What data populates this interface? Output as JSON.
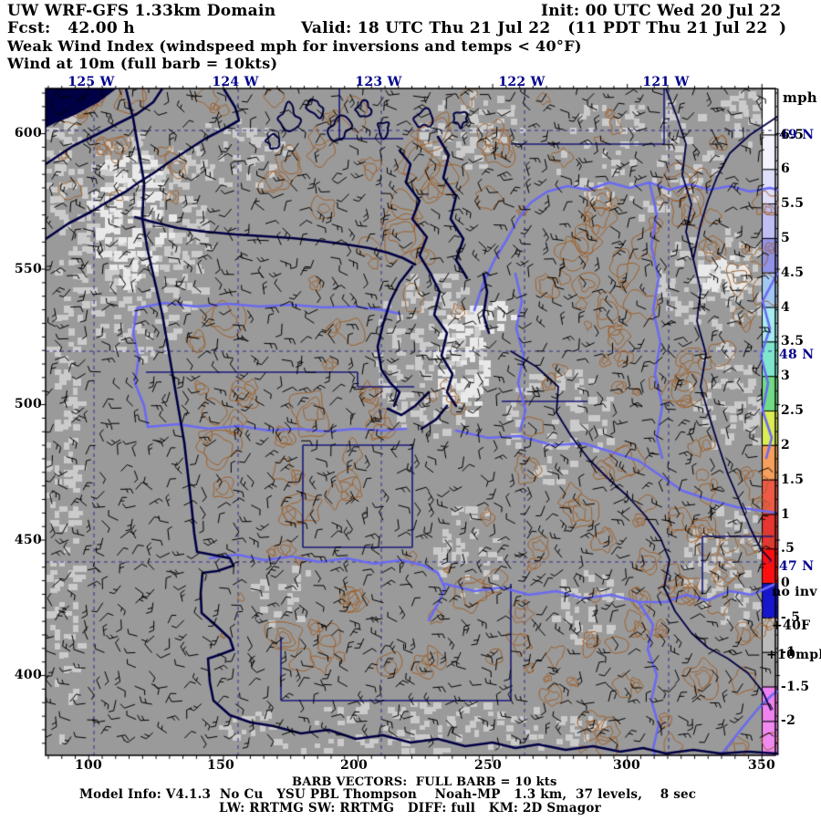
{
  "header": {
    "line1_left": "UW WRF-GFS 1.33km Domain",
    "line1_right": "Init: 00 UTC Wed 20 Jul 22",
    "line2_left": "Fcst:   42.00 h",
    "line2_right": "Valid: 18 UTC Thu 21 Jul 22   (11 PDT Thu 21 Jul 22  )",
    "line3": "Weak Wind Index (windspeed mph for inversions and temps < 40°F)",
    "line4": "Wind at 10m (full barb = 10kts)"
  },
  "axes": {
    "top_lon_labels": [
      "125 W",
      "124 W",
      "123 W",
      "122 W",
      "121 W"
    ],
    "left_y_labels": [
      "600",
      "550",
      "500",
      "450",
      "400"
    ],
    "bottom_x_labels": [
      "100",
      "150",
      "200",
      "250",
      "300",
      "350"
    ],
    "right_lat_labels": [
      "49 N",
      "48 N",
      "47 N"
    ]
  },
  "colorbar": {
    "title": "mph",
    "tick_labels": [
      "6.5",
      "6",
      "5.5",
      "5",
      "4.5",
      "4",
      "3.5",
      "3",
      "2.5",
      "2",
      "1.5",
      "1",
      ".5",
      "0",
      "-.5",
      "-1",
      "-1.5",
      "-2"
    ],
    "annotations": [
      "no inv",
      "+40F",
      "+10mph"
    ],
    "cell_colors": [
      "#ffffff",
      "#f3f3fc",
      "#dedef8",
      "#bebef2",
      "#9193e6",
      "#a4c8f0",
      "#a8ecf0",
      "#7fe6cd",
      "#70dc85",
      "#dcec55",
      "#f5a05c",
      "#ef5a47",
      "#e63532",
      "#fa1010",
      "#1616cc",
      "#bababa",
      "#a6a6a6",
      "#ee82ee",
      "#f08af0"
    ]
  },
  "footer": {
    "barb_note": "BARB VECTORS:  FULL BARB = 10 kts",
    "model_info": "Model Info: V4.1.3  No Cu   YSU PBL Thompson    Noah-MP   1.3 km,  37 levels,    8 sec",
    "physics": "LW: RRTMG SW: RRTMG   DIFF: full   KM: 2D Smagor"
  },
  "map_colors": {
    "background": "#9a9a9a",
    "light_patch": "#cbcbcb",
    "bright_patch": "#e9e9e9",
    "terrain_contour": "#9f5f28",
    "coastline": "#000044",
    "county_line": "#6a6af2",
    "boundary_line": "#17177a",
    "graticule": "#2b2b8a",
    "wind_barb": "#000000",
    "frame": "#000000",
    "label_navy": "#00008b"
  }
}
